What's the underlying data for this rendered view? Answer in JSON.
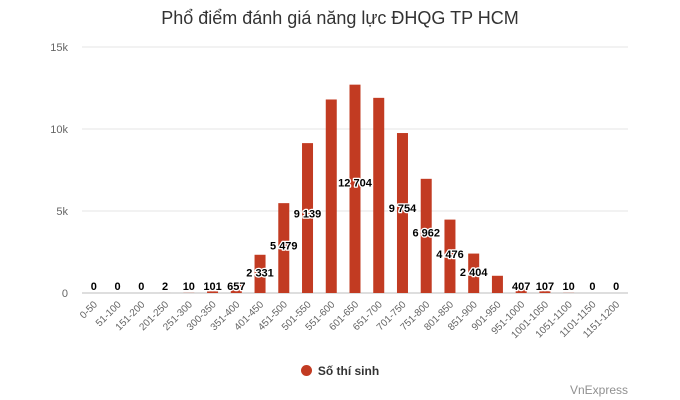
{
  "chart_data": {
    "type": "bar",
    "title": "Phổ điểm đánh giá năng lực ĐHQG TP HCM",
    "categories": [
      "0-50",
      "51-100",
      "151-200",
      "201-250",
      "251-300",
      "300-350",
      "351-400",
      "401-450",
      "451-500",
      "501-550",
      "551-600",
      "601-650",
      "651-700",
      "701-750",
      "751-800",
      "801-850",
      "851-900",
      "901-950",
      "951-1000",
      "1001-1050",
      "1051-1100",
      "1101-1150",
      "1151-1200"
    ],
    "series": [
      {
        "name": "Số thí sinh",
        "values": [
          0,
          0,
          0,
          2,
          10,
          101,
          657,
          2331,
          5479,
          9139,
          11800,
          12704,
          11900,
          9754,
          6962,
          4476,
          2404,
          1050,
          407,
          107,
          10,
          0,
          0
        ],
        "labels": [
          "0",
          "0",
          "0",
          "2",
          "10",
          "101",
          "657",
          "2 331",
          "5 479",
          "9 139",
          "",
          "12 704",
          "",
          "9 754",
          "6 962",
          "4 476",
          "2 404",
          "",
          "407",
          "107",
          "10",
          "0",
          "0"
        ]
      }
    ],
    "xlabel": "",
    "ylabel": "",
    "ylim": [
      0,
      15000
    ],
    "yticks": [
      0,
      5000,
      10000,
      15000
    ],
    "ytick_labels": [
      "0",
      "5k",
      "10k",
      "15k"
    ],
    "grid": true,
    "legend_position": "bottom",
    "bar_color": "#c23b22"
  },
  "source": "VnExpress"
}
